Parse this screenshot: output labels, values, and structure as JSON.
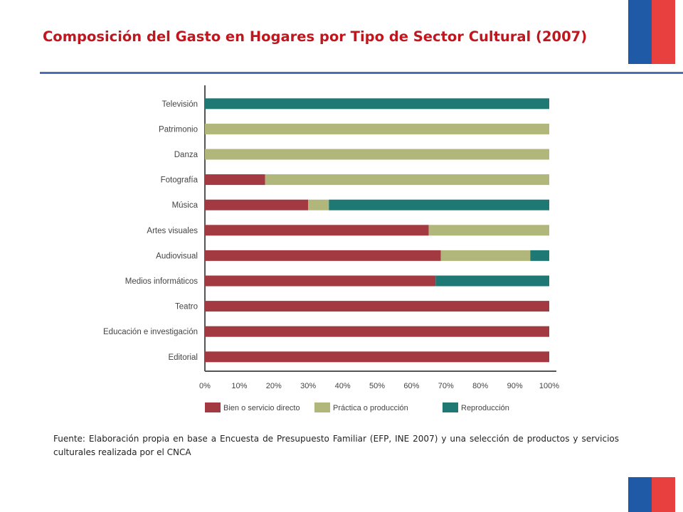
{
  "slide": {
    "title": "Composición del Gasto en Hogares por Tipo de Sector Cultural (2007)",
    "source": "Fuente: Elaboración propia en base a Encuesta de Presupuesto Familiar (EFP, INE 2007) y una selección de productos y servicios culturales realizada por el CNCA"
  },
  "colors": {
    "title": "#c0171f",
    "rule": "#4a6fb5",
    "flag_blue": "#1f5aa6",
    "flag_red": "#e8403f"
  },
  "chart_data": {
    "type": "bar",
    "orientation": "horizontal",
    "stacked": true,
    "title": "",
    "xlabel": "",
    "ylabel": "",
    "xlim": [
      0,
      100
    ],
    "x_ticks": [
      "0%",
      "10%",
      "20%",
      "30%",
      "40%",
      "50%",
      "60%",
      "70%",
      "80%",
      "90%",
      "100%"
    ],
    "legend_position": "bottom",
    "grid": false,
    "categories": [
      "Televisión",
      "Patrimonio",
      "Danza",
      "Fotografía",
      "Música",
      "Artes visuales",
      "Audiovisual",
      "Medios informáticos",
      "Teatro",
      "Educación e investigación",
      "Editorial"
    ],
    "series": [
      {
        "name": "Bien o servicio directo",
        "color": "#a33a42",
        "values": [
          0,
          0,
          0,
          17.5,
          30,
          65,
          68.5,
          67,
          100,
          100,
          100
        ]
      },
      {
        "name": "Práctica o producción",
        "color": "#b1b77a",
        "values": [
          0,
          100,
          100,
          82.5,
          6,
          35,
          26,
          0,
          0,
          0,
          0
        ]
      },
      {
        "name": "Reproducción",
        "color": "#1e7873",
        "values": [
          100,
          0,
          0,
          0,
          64,
          0,
          5.5,
          33,
          0,
          0,
          0
        ]
      }
    ]
  }
}
